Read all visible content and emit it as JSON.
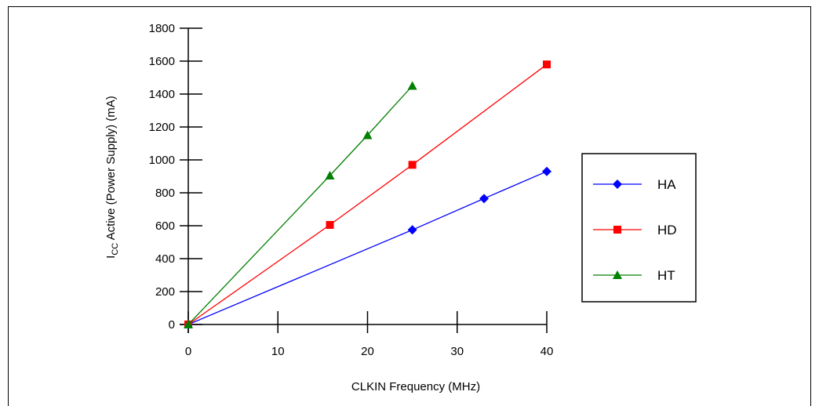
{
  "chart_data": {
    "type": "line",
    "title": "",
    "xlabel": "CLKIN Frequency (MHz)",
    "ylabel_main": "I",
    "ylabel_sub": "CC",
    "ylabel_rest": " Active (Power Supply) (mA)",
    "xlim": [
      0,
      40
    ],
    "ylim": [
      0,
      1800
    ],
    "x_ticks": [
      0,
      10,
      20,
      30,
      40
    ],
    "x_tick_labels": [
      "0",
      "10",
      "20",
      "30",
      "40"
    ],
    "y_ticks": [
      0,
      200,
      400,
      600,
      800,
      1000,
      1200,
      1400,
      1600,
      1800
    ],
    "y_tick_labels": [
      "0",
      "200",
      "400",
      "600",
      "800",
      "1000",
      "1200",
      "1400",
      "1600",
      "1800"
    ],
    "grid": false,
    "legend_position": "right",
    "series": [
      {
        "name": "HA",
        "color": "#0000ff",
        "marker": "diamond",
        "x": [
          0,
          25,
          33,
          40
        ],
        "y": [
          0,
          575,
          765,
          930
        ]
      },
      {
        "name": "HD",
        "color": "#ff0000",
        "marker": "square",
        "x": [
          0,
          15.8,
          25,
          40
        ],
        "y": [
          0,
          605,
          970,
          1580
        ]
      },
      {
        "name": "HT",
        "color": "#008000",
        "marker": "triangle",
        "x": [
          0,
          15.8,
          20,
          25
        ],
        "y": [
          0,
          905,
          1150,
          1450
        ]
      }
    ]
  }
}
